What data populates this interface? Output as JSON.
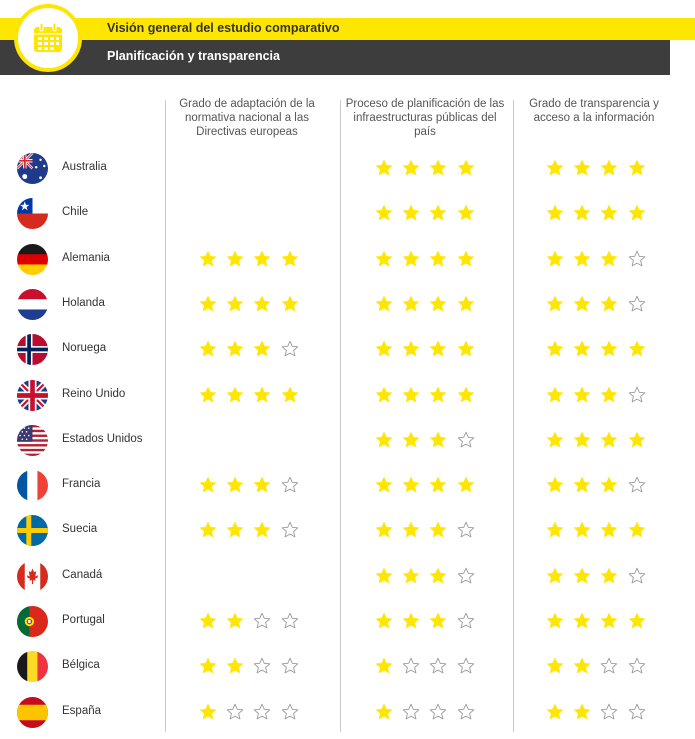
{
  "header": {
    "title": "Visión general del estudio comparativo",
    "subtitle": "Planificación y transparencia",
    "icon": "calendar-icon",
    "accent_color": "#ffe600",
    "dark_color": "#3d3d3d"
  },
  "columns": [
    {
      "label": "Grado de adaptación de la normativa nacional a las Directivas europeas"
    },
    {
      "label": "Proceso de planificación de las infraestructuras públicas del país"
    },
    {
      "label": "Grado de transparencia y acceso a la información"
    }
  ],
  "star_max": 4,
  "star_color": "#ffe600",
  "rows": [
    {
      "country": "Australia",
      "flag": "australia-flag",
      "ratings": [
        null,
        4,
        4
      ]
    },
    {
      "country": "Chile",
      "flag": "chile-flag",
      "ratings": [
        null,
        4,
        4
      ]
    },
    {
      "country": "Alemania",
      "flag": "germany-flag",
      "ratings": [
        4,
        4,
        3
      ]
    },
    {
      "country": "Holanda",
      "flag": "netherlands-flag",
      "ratings": [
        4,
        4,
        3
      ]
    },
    {
      "country": "Noruega",
      "flag": "norway-flag",
      "ratings": [
        3,
        4,
        4
      ]
    },
    {
      "country": "Reino Unido",
      "flag": "uk-flag",
      "ratings": [
        4,
        4,
        3
      ]
    },
    {
      "country": "Estados Unidos",
      "flag": "usa-flag",
      "ratings": [
        null,
        3,
        4
      ]
    },
    {
      "country": "Francia",
      "flag": "france-flag",
      "ratings": [
        3,
        4,
        3
      ]
    },
    {
      "country": "Suecia",
      "flag": "sweden-flag",
      "ratings": [
        3,
        3,
        4
      ]
    },
    {
      "country": "Canadá",
      "flag": "canada-flag",
      "ratings": [
        null,
        3,
        3
      ]
    },
    {
      "country": "Portugal",
      "flag": "portugal-flag",
      "ratings": [
        2,
        3,
        4
      ]
    },
    {
      "country": "Bélgica",
      "flag": "belgium-flag",
      "ratings": [
        2,
        1,
        2
      ]
    },
    {
      "country": "España",
      "flag": "spain-flag",
      "ratings": [
        1,
        1,
        2
      ]
    }
  ]
}
